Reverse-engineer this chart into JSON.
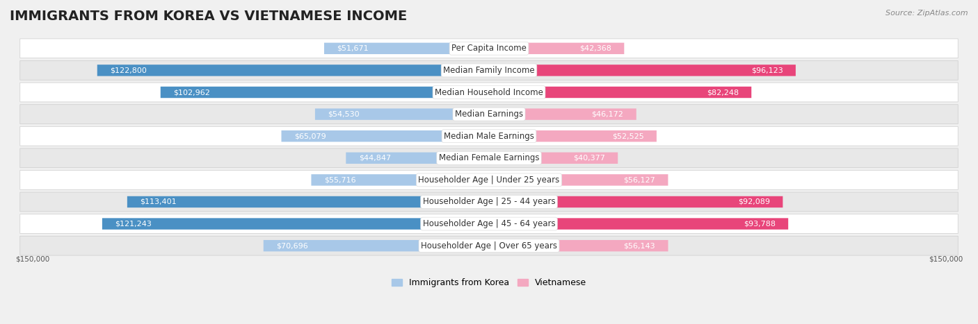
{
  "title": "IMMIGRANTS FROM KOREA VS VIETNAMESE INCOME",
  "source": "Source: ZipAtlas.com",
  "categories": [
    "Per Capita Income",
    "Median Family Income",
    "Median Household Income",
    "Median Earnings",
    "Median Male Earnings",
    "Median Female Earnings",
    "Householder Age | Under 25 years",
    "Householder Age | 25 - 44 years",
    "Householder Age | 45 - 64 years",
    "Householder Age | Over 65 years"
  ],
  "korea_values": [
    51671,
    122800,
    102962,
    54530,
    65079,
    44847,
    55716,
    113401,
    121243,
    70696
  ],
  "vietnamese_values": [
    42368,
    96123,
    82248,
    46172,
    52525,
    40377,
    56127,
    92089,
    93788,
    56143
  ],
  "korea_color_light": "#A8C8E8",
  "korea_color_dark": "#4A90C4",
  "vietnamese_color_light": "#F4A8C0",
  "vietnamese_color_dark": "#E8457A",
  "korea_label": "Immigrants from Korea",
  "vietnamese_label": "Vietnamese",
  "max_value": 150000,
  "axis_label": "$150,000",
  "background_color": "#f0f0f0",
  "row_bg_light": "#ffffff",
  "row_bg_dark": "#e8e8e8",
  "title_fontsize": 14,
  "label_fontsize": 8.5,
  "value_fontsize": 8,
  "legend_fontsize": 9,
  "dark_threshold": 80000
}
